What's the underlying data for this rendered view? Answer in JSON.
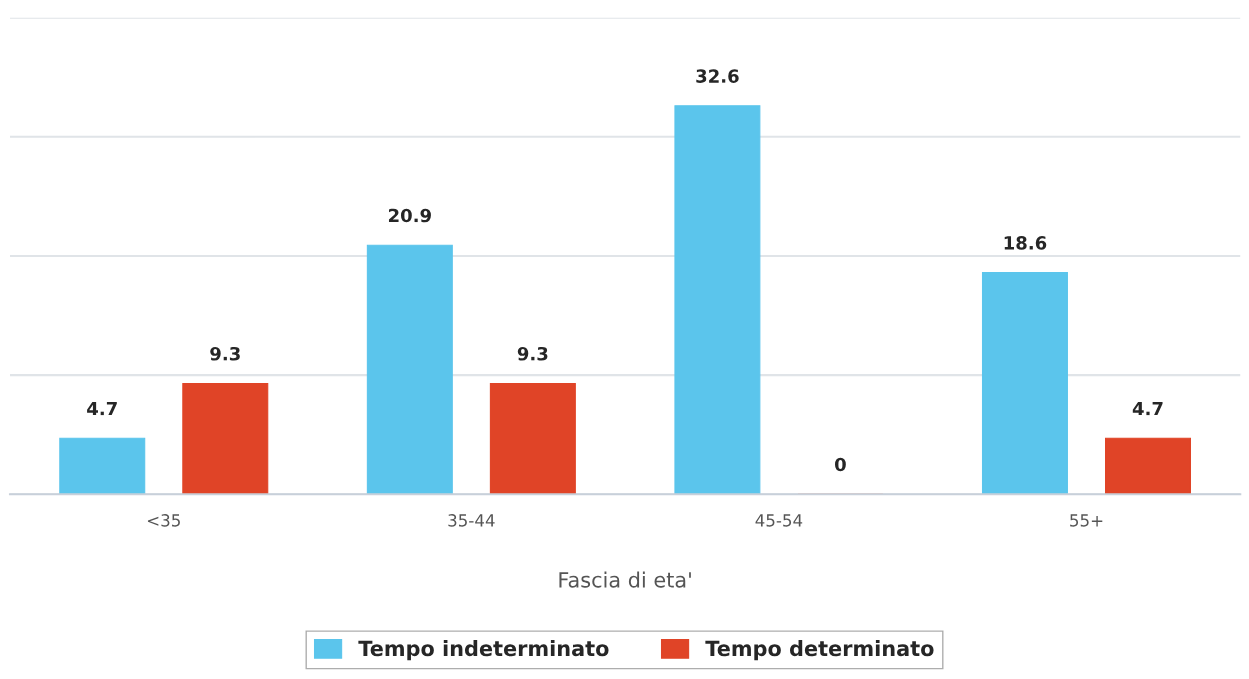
{
  "chart_data": {
    "type": "bar",
    "xlabel": "Fascia di eta'",
    "categories": [
      "<35",
      "35-44",
      "45-54",
      "55+"
    ],
    "series": [
      {
        "name": "Tempo indeterminato",
        "color": "#5bc5ec",
        "values": [
          4.7,
          20.9,
          32.6,
          18.6
        ]
      },
      {
        "name": "Tempo determinato",
        "color": "#e04427",
        "values": [
          9.3,
          9.3,
          0,
          4.7
        ]
      }
    ],
    "ylim": [
      0,
      40
    ],
    "yticks": [
      {
        "value": 0,
        "label": null
      },
      {
        "value": 10,
        "label": null
      },
      {
        "value": 20,
        "label": null
      },
      {
        "value": 30,
        "label": null
      },
      {
        "value": 40,
        "label": null
      }
    ],
    "tick_labels": "x",
    "grid": "y",
    "data_labels": true,
    "legend": "bottom"
  }
}
